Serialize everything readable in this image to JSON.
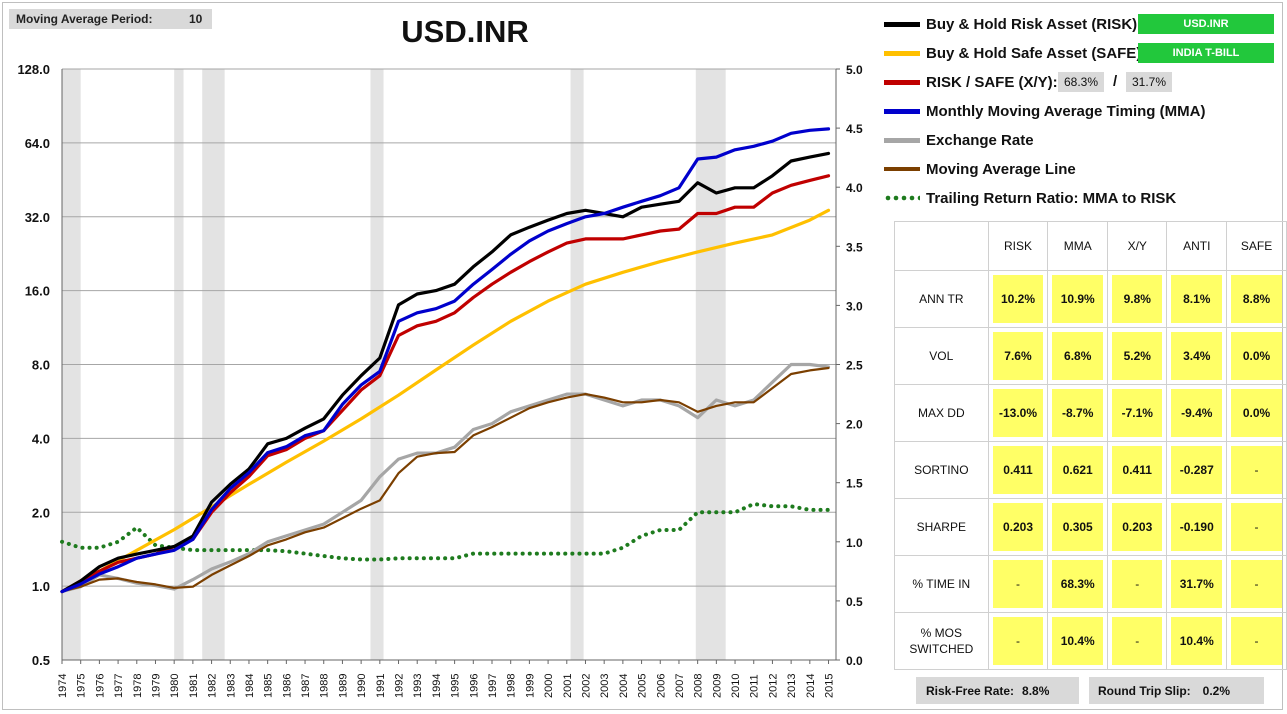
{
  "header": {
    "ma_period_label": "Moving Average Period:",
    "ma_period_value": "10",
    "title": "USD.INR"
  },
  "legend": {
    "risk_label": "Buy & Hold Risk Asset (RISK):",
    "risk_asset": "USD.INR",
    "safe_label": "Buy & Hold Safe Asset (SAFE):",
    "safe_asset": "INDIA T-BILL",
    "ratio_label": "RISK / SAFE (X/Y):",
    "ratio_x": "68.3%",
    "ratio_sep": "/",
    "ratio_y": "31.7%",
    "mma_label": "Monthly Moving Average Timing (MMA)",
    "fx_label": "Exchange Rate",
    "maline_label": "Moving Average Line",
    "trail_label": "Trailing Return Ratio: MMA to RISK"
  },
  "stats": {
    "columns": [
      "RISK",
      "MMA",
      "X/Y",
      "ANTI",
      "SAFE"
    ],
    "rows": [
      {
        "label": "ANN TR",
        "values": [
          "10.2%",
          "10.9%",
          "9.8%",
          "8.1%",
          "8.8%"
        ]
      },
      {
        "label": "VOL",
        "values": [
          "7.6%",
          "6.8%",
          "5.2%",
          "3.4%",
          "0.0%"
        ]
      },
      {
        "label": "MAX DD",
        "values": [
          "-13.0%",
          "-8.7%",
          "-7.1%",
          "-9.4%",
          "0.0%"
        ]
      },
      {
        "label": "SORTINO",
        "values": [
          "0.411",
          "0.621",
          "0.411",
          "-0.287",
          "-"
        ]
      },
      {
        "label": "SHARPE",
        "values": [
          "0.203",
          "0.305",
          "0.203",
          "-0.190",
          "-"
        ]
      },
      {
        "label": "% TIME IN",
        "values": [
          "-",
          "68.3%",
          "-",
          "31.7%",
          "-"
        ]
      },
      {
        "label": "% MOS SWITCHED",
        "values": [
          "-",
          "10.4%",
          "-",
          "10.4%",
          "-"
        ]
      }
    ]
  },
  "footer": {
    "rf_label": "Risk-Free Rate:",
    "rf_value": "8.8%",
    "slip_label": "Round Trip Slip:",
    "slip_value": "0.2%"
  },
  "chart_data": {
    "type": "line",
    "title": "USD.INR",
    "x_ticks": [
      "1974",
      "1975",
      "1976",
      "1977",
      "1978",
      "1979",
      "1980",
      "1981",
      "1982",
      "1983",
      "1984",
      "1985",
      "1986",
      "1987",
      "1988",
      "1989",
      "1990",
      "1991",
      "1992",
      "1993",
      "1994",
      "1995",
      "1996",
      "1997",
      "1998",
      "1999",
      "2000",
      "2001",
      "2002",
      "2003",
      "2004",
      "2005",
      "2006",
      "2007",
      "2008",
      "2009",
      "2010",
      "2011",
      "2012",
      "2013",
      "2014",
      "2015"
    ],
    "y_left_ticks": [
      "0.5",
      "1.0",
      "2.0",
      "4.0",
      "8.0",
      "16.0",
      "32.0",
      "64.0",
      "128.0"
    ],
    "y_left_scale": "log2",
    "y_left_range": [
      0.5,
      128
    ],
    "y_right_ticks": [
      "0.0",
      "0.5",
      "1.0",
      "1.5",
      "2.0",
      "2.5",
      "3.0",
      "3.5",
      "4.0",
      "4.5",
      "5.0"
    ],
    "y_right_range": [
      0,
      5
    ],
    "grid": "horizontal",
    "recession_bands": [
      [
        1974.0,
        1975.0
      ],
      [
        1980.0,
        1980.5
      ],
      [
        1981.5,
        1982.7
      ],
      [
        1990.5,
        1991.2
      ],
      [
        2001.2,
        2001.9
      ],
      [
        2007.9,
        2009.5
      ]
    ],
    "series": [
      {
        "name": "Buy & Hold Risk Asset (RISK)",
        "color": "#000000",
        "axis": "left",
        "x": [
          1974,
          1975,
          1976,
          1977,
          1978,
          1979,
          1980,
          1981,
          1982,
          1983,
          1984,
          1985,
          1986,
          1987,
          1988,
          1989,
          1990,
          1991,
          1992,
          1993,
          1994,
          1995,
          1996,
          1997,
          1998,
          1999,
          2000,
          2001,
          2002,
          2003,
          2004,
          2005,
          2006,
          2007,
          2008,
          2009,
          2010,
          2011,
          2012,
          2013,
          2014,
          2015
        ],
        "y": [
          0.95,
          1.05,
          1.2,
          1.3,
          1.35,
          1.4,
          1.45,
          1.6,
          2.2,
          2.6,
          3.0,
          3.8,
          4.0,
          4.4,
          4.8,
          6.0,
          7.2,
          8.5,
          14,
          15.5,
          16,
          17,
          20,
          23,
          27,
          29,
          31,
          33,
          34,
          33,
          32,
          35,
          36,
          37,
          44,
          40,
          42,
          42,
          47,
          54,
          56,
          58
        ]
      },
      {
        "name": "Buy & Hold Safe Asset (SAFE)",
        "color": "#ffc000",
        "axis": "left",
        "x": [
          1974,
          1976,
          1978,
          1980,
          1982,
          1984,
          1986,
          1988,
          1990,
          1992,
          1994,
          1996,
          1998,
          2000,
          2002,
          2004,
          2006,
          2008,
          2010,
          2012,
          2014,
          2015
        ],
        "y": [
          0.95,
          1.15,
          1.4,
          1.7,
          2.1,
          2.6,
          3.2,
          3.9,
          4.8,
          6.0,
          7.6,
          9.6,
          12,
          14.5,
          17,
          19,
          21,
          23,
          25,
          27,
          31,
          34
        ]
      },
      {
        "name": "RISK / SAFE (X/Y)",
        "color": "#c00000",
        "axis": "left",
        "x": [
          1974,
          1975,
          1976,
          1977,
          1978,
          1979,
          1980,
          1981,
          1982,
          1983,
          1984,
          1985,
          1986,
          1987,
          1988,
          1989,
          1990,
          1991,
          1992,
          1993,
          1994,
          1995,
          1996,
          1997,
          1998,
          1999,
          2000,
          2001,
          2002,
          2003,
          2004,
          2005,
          2006,
          2007,
          2008,
          2009,
          2010,
          2011,
          2012,
          2013,
          2014,
          2015
        ],
        "y": [
          0.95,
          1.05,
          1.15,
          1.25,
          1.3,
          1.35,
          1.45,
          1.55,
          2.0,
          2.4,
          2.8,
          3.4,
          3.6,
          4.0,
          4.3,
          5.2,
          6.3,
          7.2,
          10.5,
          11.5,
          12,
          13,
          15,
          17,
          19,
          21,
          23,
          25,
          26,
          26,
          26,
          27,
          28,
          28.5,
          33,
          33,
          35,
          35,
          40,
          43,
          45,
          47
        ]
      },
      {
        "name": "Monthly Moving Average Timing (MMA)",
        "color": "#0000cc",
        "axis": "left",
        "x": [
          1974,
          1975,
          1976,
          1977,
          1978,
          1979,
          1980,
          1981,
          1982,
          1983,
          1984,
          1985,
          1986,
          1987,
          1988,
          1989,
          1990,
          1991,
          1992,
          1993,
          1994,
          1995,
          1996,
          1997,
          1998,
          1999,
          2000,
          2001,
          2002,
          2003,
          2004,
          2005,
          2006,
          2007,
          2008,
          2009,
          2010,
          2011,
          2012,
          2013,
          2014,
          2015
        ],
        "y": [
          0.95,
          1.02,
          1.12,
          1.2,
          1.3,
          1.35,
          1.4,
          1.55,
          2.05,
          2.5,
          2.9,
          3.5,
          3.7,
          4.1,
          4.3,
          5.5,
          6.6,
          7.5,
          12,
          13,
          13.5,
          14.5,
          17,
          19.5,
          22.5,
          25.5,
          28,
          30,
          32,
          33,
          35,
          37,
          39,
          42,
          55,
          56,
          60,
          62,
          65,
          70,
          72,
          73
        ]
      },
      {
        "name": "Exchange Rate",
        "color": "#a6a6a6",
        "axis": "right",
        "x": [
          1974,
          1975,
          1976,
          1977,
          1978,
          1979,
          1980,
          1981,
          1982,
          1983,
          1984,
          1985,
          1986,
          1987,
          1988,
          1989,
          1990,
          1991,
          1992,
          1993,
          1994,
          1995,
          1996,
          1997,
          1998,
          1999,
          2000,
          2001,
          2002,
          2003,
          2004,
          2005,
          2006,
          2007,
          2008,
          2009,
          2010,
          2011,
          2012,
          2013,
          2014,
          2015
        ],
        "y": [
          0.58,
          0.62,
          0.72,
          0.69,
          0.65,
          0.63,
          0.6,
          0.68,
          0.77,
          0.83,
          0.9,
          1.0,
          1.05,
          1.1,
          1.15,
          1.25,
          1.35,
          1.55,
          1.7,
          1.75,
          1.75,
          1.8,
          1.95,
          2.0,
          2.1,
          2.15,
          2.2,
          2.25,
          2.25,
          2.2,
          2.15,
          2.2,
          2.2,
          2.15,
          2.05,
          2.2,
          2.15,
          2.2,
          2.35,
          2.5,
          2.5,
          2.48
        ]
      },
      {
        "name": "Moving Average Line",
        "color": "#7b3f00",
        "axis": "right",
        "x": [
          1974,
          1975,
          1976,
          1977,
          1978,
          1979,
          1980,
          1981,
          1982,
          1983,
          1984,
          1985,
          1986,
          1987,
          1988,
          1989,
          1990,
          1991,
          1992,
          1993,
          1994,
          1995,
          1996,
          1997,
          1998,
          1999,
          2000,
          2001,
          2002,
          2003,
          2004,
          2005,
          2006,
          2007,
          2008,
          2009,
          2010,
          2011,
          2012,
          2013,
          2014,
          2015
        ],
        "y": [
          0.58,
          0.62,
          0.68,
          0.69,
          0.66,
          0.64,
          0.61,
          0.62,
          0.72,
          0.8,
          0.88,
          0.97,
          1.02,
          1.08,
          1.12,
          1.2,
          1.28,
          1.35,
          1.58,
          1.72,
          1.75,
          1.76,
          1.9,
          1.97,
          2.05,
          2.13,
          2.18,
          2.22,
          2.25,
          2.22,
          2.18,
          2.18,
          2.2,
          2.18,
          2.1,
          2.15,
          2.18,
          2.18,
          2.3,
          2.42,
          2.45,
          2.47
        ]
      },
      {
        "name": "Trailing Return Ratio: MMA to RISK",
        "color": "#1e7b1e",
        "axis": "right",
        "style": "dotted",
        "x": [
          1974,
          1975,
          1976,
          1977,
          1978,
          1979,
          1980,
          1981,
          1982,
          1983,
          1984,
          1985,
          1986,
          1987,
          1988,
          1989,
          1990,
          1991,
          1992,
          1993,
          1994,
          1995,
          1996,
          1997,
          1998,
          1999,
          2000,
          2001,
          2002,
          2003,
          2004,
          2005,
          2006,
          2007,
          2008,
          2009,
          2010,
          2011,
          2012,
          2013,
          2014,
          2015
        ],
        "y": [
          1.0,
          0.95,
          0.95,
          1.0,
          1.12,
          0.97,
          0.95,
          0.93,
          0.93,
          0.93,
          0.93,
          0.93,
          0.92,
          0.9,
          0.88,
          0.86,
          0.85,
          0.85,
          0.86,
          0.86,
          0.86,
          0.86,
          0.9,
          0.9,
          0.9,
          0.9,
          0.9,
          0.9,
          0.9,
          0.9,
          0.95,
          1.05,
          1.1,
          1.1,
          1.25,
          1.25,
          1.25,
          1.32,
          1.3,
          1.3,
          1.27,
          1.27
        ]
      }
    ]
  }
}
